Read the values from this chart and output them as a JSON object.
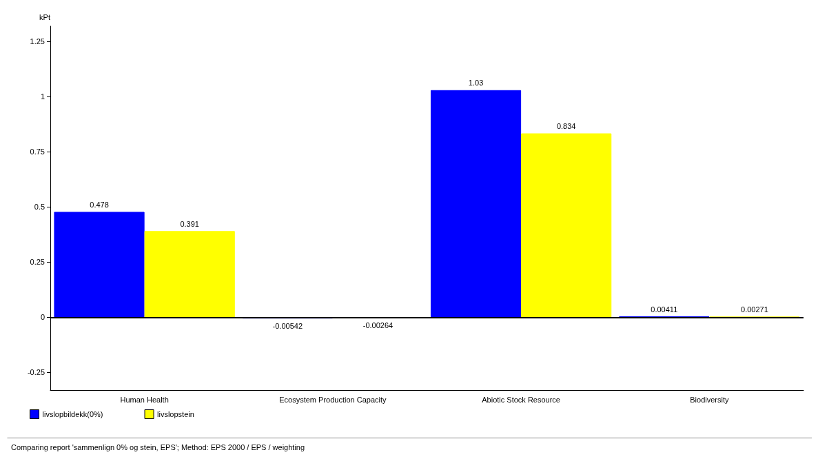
{
  "chart_data": {
    "type": "bar",
    "ylabel": "kPt",
    "categories": [
      "Human Health",
      "Ecosystem Production Capacity",
      "Abiotic Stock Resource",
      "Biodiversity"
    ],
    "series": [
      {
        "name": "livslopbildekk(0%)",
        "color": "#0000ff",
        "values": [
          0.478,
          -0.00542,
          1.03,
          0.00411
        ]
      },
      {
        "name": "livslopstein",
        "color": "#ffff00",
        "values": [
          0.391,
          -0.00264,
          0.834,
          0.00271
        ]
      }
    ],
    "ylim": [
      -0.33,
      1.32
    ],
    "yticks": [
      -0.25,
      0,
      0.25,
      0.5,
      0.75,
      1,
      1.25
    ],
    "ref_lines": [
      {
        "axis": "y",
        "value": 0,
        "color": "#000000"
      }
    ],
    "data_labels": true,
    "grid": false,
    "legend": "bottom left",
    "annotations": [
      "Comparing report 'sammenlign 0% og stein, EPS'; Method: EPS 2000 / EPS / weighting"
    ]
  }
}
